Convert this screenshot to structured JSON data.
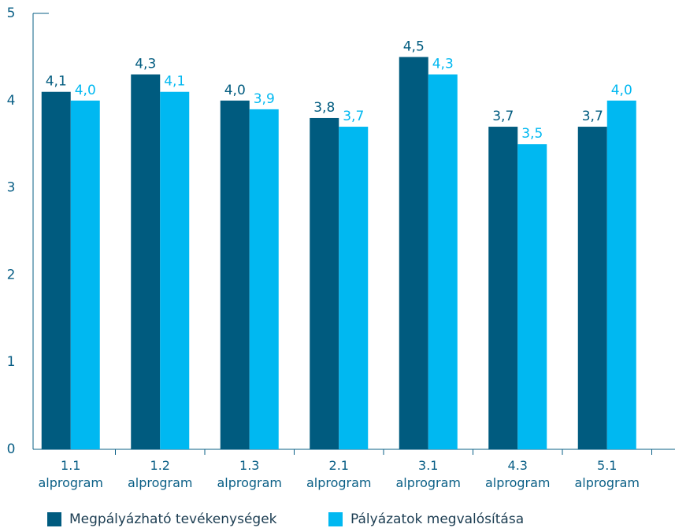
{
  "chart_data": {
    "type": "bar",
    "categories": [
      "1.1 alprogram",
      "1.2 alprogram",
      "1.3 alprogram",
      "2.1 alprogram",
      "3.1 alprogram",
      "4.3 alprogram",
      "5.1 alprogram"
    ],
    "series": [
      {
        "name": "Megpályázható tevékenységek",
        "color": "#005b7f",
        "values": [
          4.1,
          4.3,
          4.0,
          3.8,
          4.5,
          3.7,
          3.7
        ],
        "value_labels": [
          "4,1",
          "4,3",
          "4,0",
          "3,8",
          "4,5",
          "3,7",
          "3,7"
        ]
      },
      {
        "name": "Pályázatok megvalósítása",
        "color": "#00b8f1",
        "values": [
          4.0,
          4.1,
          3.9,
          3.7,
          4.3,
          3.5,
          4.0
        ],
        "value_labels": [
          "4,0",
          "4,1",
          "3,9",
          "3,7",
          "4,3",
          "3,5",
          "4,0"
        ]
      }
    ],
    "ylim": [
      0,
      5
    ],
    "yticks": [
      0,
      1,
      2,
      3,
      4,
      5
    ],
    "grid": false
  }
}
